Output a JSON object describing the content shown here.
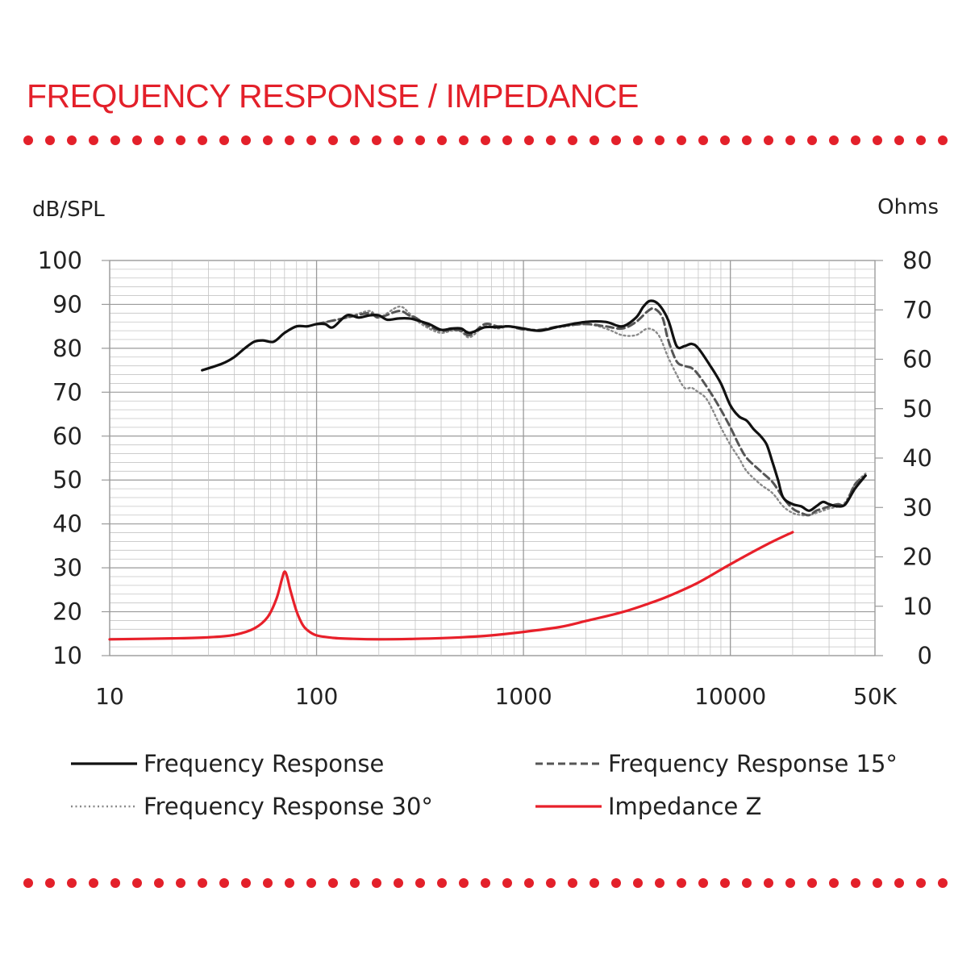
{
  "title": "FREQUENCY RESPONSE / IMPEDANCE",
  "colors": {
    "accent": "#e3202a",
    "grid": "#c4c4c4",
    "grid_major": "#9a9a9a",
    "fr": "#111111",
    "fr15": "#555555",
    "fr30": "#8a8a8a",
    "impedance": "#e8202a"
  },
  "chart_data": {
    "type": "line",
    "title": "",
    "xlabel": "",
    "ylabel_left": "dB/SPL",
    "ylabel_right": "Ohms",
    "x_scale": "log",
    "xlim": [
      10,
      50000
    ],
    "ylim_left": [
      10,
      100
    ],
    "ylim_right": [
      0,
      80
    ],
    "grid": true,
    "legend_position": "bottom",
    "x_ticks": [
      {
        "value": 10,
        "label": "10"
      },
      {
        "value": 100,
        "label": "100"
      },
      {
        "value": 1000,
        "label": "1000"
      },
      {
        "value": 10000,
        "label": "10000"
      },
      {
        "value": 50000,
        "label": "50K"
      }
    ],
    "y_ticks_left": [
      "10",
      "20",
      "30",
      "40",
      "50",
      "60",
      "70",
      "80",
      "90",
      "100"
    ],
    "y_ticks_right": [
      "0",
      "10",
      "20",
      "30",
      "40",
      "50",
      "60",
      "70",
      "80"
    ],
    "series": [
      {
        "name": "Frequency Response",
        "axis": "left",
        "style": "solid",
        "points": [
          [
            28,
            75
          ],
          [
            35,
            76.5
          ],
          [
            40,
            78
          ],
          [
            45,
            80
          ],
          [
            50,
            81.5
          ],
          [
            55,
            81.8
          ],
          [
            62,
            81.5
          ],
          [
            70,
            83.5
          ],
          [
            80,
            85
          ],
          [
            90,
            85
          ],
          [
            100,
            85.5
          ],
          [
            110,
            85.5
          ],
          [
            120,
            84.8
          ],
          [
            140,
            87.5
          ],
          [
            160,
            87
          ],
          [
            180,
            87.5
          ],
          [
            200,
            87.5
          ],
          [
            220,
            86.5
          ],
          [
            250,
            86.8
          ],
          [
            280,
            86.8
          ],
          [
            300,
            86.5
          ],
          [
            350,
            85.5
          ],
          [
            400,
            84.2
          ],
          [
            450,
            84.5
          ],
          [
            500,
            84.5
          ],
          [
            550,
            83.5
          ],
          [
            650,
            84.8
          ],
          [
            750,
            84.8
          ],
          [
            850,
            85
          ],
          [
            1000,
            84.5
          ],
          [
            1200,
            84
          ],
          [
            1500,
            85
          ],
          [
            2000,
            86
          ],
          [
            2500,
            86
          ],
          [
            3000,
            85
          ],
          [
            3500,
            87
          ],
          [
            3800,
            89.5
          ],
          [
            4100,
            90.8
          ],
          [
            4500,
            90
          ],
          [
            5000,
            86.5
          ],
          [
            5500,
            80.5
          ],
          [
            6000,
            80.5
          ],
          [
            6500,
            81
          ],
          [
            7000,
            80
          ],
          [
            8000,
            76
          ],
          [
            9000,
            72
          ],
          [
            10000,
            67
          ],
          [
            11000,
            64.5
          ],
          [
            12000,
            63.5
          ],
          [
            13000,
            61.5
          ],
          [
            14000,
            60
          ],
          [
            15000,
            58
          ],
          [
            16000,
            54
          ],
          [
            17000,
            50
          ],
          [
            18000,
            46
          ],
          [
            20000,
            44.5
          ],
          [
            22000,
            44
          ],
          [
            24000,
            43
          ],
          [
            26000,
            44
          ],
          [
            28000,
            45
          ],
          [
            30000,
            44.5
          ],
          [
            33000,
            44
          ],
          [
            36000,
            44.5
          ],
          [
            40000,
            48
          ],
          [
            45000,
            51
          ]
        ]
      },
      {
        "name": "Frequency Response 15°",
        "axis": "left",
        "style": "dashed",
        "points": [
          [
            100,
            85.5
          ],
          [
            140,
            87
          ],
          [
            180,
            88
          ],
          [
            200,
            87
          ],
          [
            250,
            88.5
          ],
          [
            280,
            87.5
          ],
          [
            300,
            87
          ],
          [
            350,
            85
          ],
          [
            400,
            84
          ],
          [
            450,
            84.2
          ],
          [
            500,
            84
          ],
          [
            550,
            83
          ],
          [
            650,
            85.5
          ],
          [
            750,
            85
          ],
          [
            850,
            85
          ],
          [
            1000,
            84.3
          ],
          [
            1200,
            84.2
          ],
          [
            1500,
            85
          ],
          [
            2000,
            85.5
          ],
          [
            2500,
            85
          ],
          [
            3000,
            84.5
          ],
          [
            3500,
            86
          ],
          [
            4000,
            88.5
          ],
          [
            4300,
            89
          ],
          [
            4700,
            87
          ],
          [
            5000,
            82
          ],
          [
            5500,
            77
          ],
          [
            6000,
            76
          ],
          [
            6500,
            75.5
          ],
          [
            7000,
            74
          ],
          [
            8000,
            70
          ],
          [
            9000,
            66
          ],
          [
            10000,
            62
          ],
          [
            11000,
            58
          ],
          [
            12000,
            55
          ],
          [
            14000,
            52
          ],
          [
            16000,
            49.5
          ],
          [
            18000,
            46
          ],
          [
            20000,
            43.5
          ],
          [
            22000,
            42.5
          ],
          [
            24000,
            42
          ],
          [
            26000,
            43
          ],
          [
            28000,
            43.5
          ],
          [
            30000,
            44
          ],
          [
            33000,
            44.5
          ],
          [
            36000,
            44.5
          ],
          [
            40000,
            49
          ],
          [
            45000,
            51
          ]
        ]
      },
      {
        "name": "Frequency Response 30°",
        "axis": "left",
        "style": "dotted",
        "points": [
          [
            100,
            85.5
          ],
          [
            140,
            87
          ],
          [
            180,
            88.5
          ],
          [
            200,
            87
          ],
          [
            250,
            89.5
          ],
          [
            280,
            88
          ],
          [
            300,
            86.5
          ],
          [
            350,
            84.5
          ],
          [
            400,
            83.5
          ],
          [
            450,
            84
          ],
          [
            500,
            83.8
          ],
          [
            550,
            82.5
          ],
          [
            650,
            85
          ],
          [
            750,
            84.5
          ],
          [
            850,
            85
          ],
          [
            1000,
            84.5
          ],
          [
            1200,
            84.2
          ],
          [
            1500,
            84.8
          ],
          [
            2000,
            85.5
          ],
          [
            2500,
            84.5
          ],
          [
            3000,
            83
          ],
          [
            3500,
            83
          ],
          [
            4000,
            84.5
          ],
          [
            4500,
            83
          ],
          [
            5000,
            78
          ],
          [
            5500,
            74
          ],
          [
            6000,
            71
          ],
          [
            6500,
            71
          ],
          [
            7000,
            70
          ],
          [
            7500,
            69
          ],
          [
            8000,
            67
          ],
          [
            9000,
            62
          ],
          [
            10000,
            58
          ],
          [
            11000,
            55
          ],
          [
            12000,
            52
          ],
          [
            14000,
            49
          ],
          [
            16000,
            47
          ],
          [
            18000,
            44
          ],
          [
            20000,
            42.5
          ],
          [
            22000,
            42
          ],
          [
            24000,
            42
          ],
          [
            26000,
            42.5
          ],
          [
            28000,
            43
          ],
          [
            30000,
            43.5
          ],
          [
            33000,
            44
          ],
          [
            36000,
            45
          ],
          [
            40000,
            49
          ],
          [
            45000,
            51.5
          ]
        ]
      },
      {
        "name": "Impedance Z",
        "axis": "right",
        "style": "solid",
        "points": [
          [
            10,
            3.3
          ],
          [
            20,
            3.5
          ],
          [
            30,
            3.7
          ],
          [
            40,
            4.2
          ],
          [
            50,
            5.5
          ],
          [
            58,
            7.8
          ],
          [
            64,
            11.5
          ],
          [
            68,
            15.5
          ],
          [
            70,
            17
          ],
          [
            72,
            16
          ],
          [
            75,
            13
          ],
          [
            80,
            9
          ],
          [
            85,
            6.5
          ],
          [
            90,
            5.2
          ],
          [
            100,
            4.1
          ],
          [
            120,
            3.6
          ],
          [
            150,
            3.4
          ],
          [
            200,
            3.3
          ],
          [
            300,
            3.4
          ],
          [
            500,
            3.7
          ],
          [
            700,
            4.1
          ],
          [
            1000,
            4.8
          ],
          [
            1500,
            5.8
          ],
          [
            2000,
            7
          ],
          [
            3000,
            8.8
          ],
          [
            4000,
            10.5
          ],
          [
            5000,
            12
          ],
          [
            7000,
            14.8
          ],
          [
            10000,
            18.5
          ],
          [
            15000,
            22.5
          ],
          [
            20000,
            25
          ]
        ]
      }
    ]
  }
}
